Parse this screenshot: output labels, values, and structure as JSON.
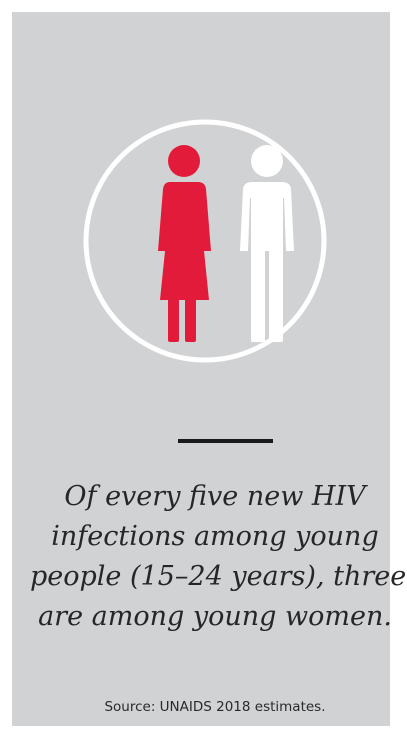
{
  "infographic": {
    "icons": {
      "female_figure_color": "#e31b3b",
      "male_figure_color": "#ffffff",
      "ring_color": "#ffffff",
      "background_color": "#d1d2d4"
    },
    "quote_lines": [
      "Of every five new HIV",
      "infections among young",
      "people (15–24 years), three",
      "are among young women."
    ],
    "source": "Source: UNAIDS 2018 estimates."
  }
}
